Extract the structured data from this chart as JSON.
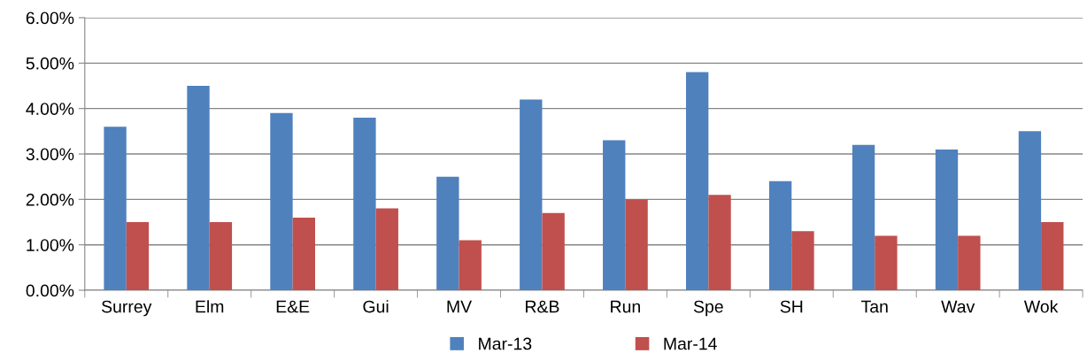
{
  "chart_data": {
    "type": "bar",
    "categories": [
      "Surrey",
      "Elm",
      "E&E",
      "Gui",
      "MV",
      "R&B",
      "Run",
      "Spe",
      "SH",
      "Tan",
      "Wav",
      "Wok"
    ],
    "series": [
      {
        "name": "Mar-13",
        "color": "#4f81bd",
        "values": [
          3.6,
          4.5,
          3.9,
          3.8,
          2.5,
          4.2,
          3.3,
          4.8,
          2.4,
          3.2,
          3.1,
          3.5
        ]
      },
      {
        "name": "Mar-14",
        "color": "#c0504d",
        "values": [
          1.5,
          1.5,
          1.6,
          1.8,
          1.1,
          1.7,
          2.0,
          2.1,
          1.3,
          1.2,
          1.2,
          1.5
        ]
      }
    ],
    "ylim": [
      0,
      6
    ],
    "yticks": [
      {
        "value": 0,
        "label": "0.00%"
      },
      {
        "value": 1,
        "label": "1.00%"
      },
      {
        "value": 2,
        "label": "2.00%"
      },
      {
        "value": 3,
        "label": "3.00%"
      },
      {
        "value": 4,
        "label": "4.00%"
      },
      {
        "value": 5,
        "label": "5.00%"
      },
      {
        "value": 6,
        "label": "6.00%"
      }
    ],
    "grid": "y",
    "legend": "bottom"
  }
}
